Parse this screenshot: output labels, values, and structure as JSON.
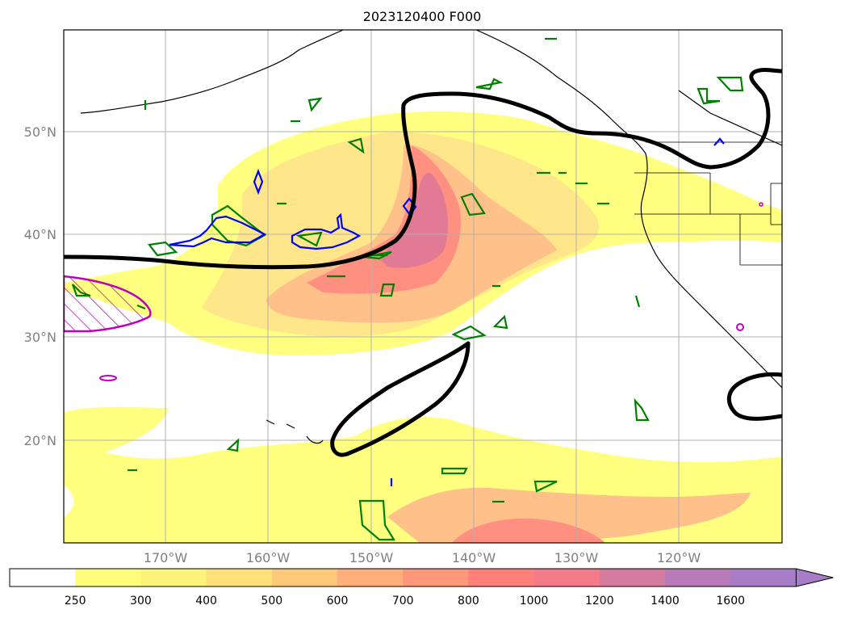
{
  "title": "2023120400 F000",
  "map": {
    "lat_labels": [
      "50°N",
      "40°N",
      "30°N",
      "20°N"
    ],
    "lon_labels": [
      "170°W",
      "160°W",
      "150°W",
      "140°W",
      "130°W",
      "120°W"
    ],
    "gridlines": true
  },
  "colorbar": {
    "ticks": [
      "250",
      "300",
      "400",
      "500",
      "600",
      "700",
      "800",
      "1000",
      "1200",
      "1400",
      "1600"
    ],
    "colors": [
      "#ffffff",
      "#fffd7a",
      "#fff27a",
      "#ffe07a",
      "#ffc97a",
      "#ffb07a",
      "#ff977a",
      "#ff7f7a",
      "#f37b8a",
      "#d47b9f",
      "#b87ab8",
      "#a77dc8"
    ],
    "extend": "max"
  },
  "colors": {
    "jet_contour": "#000000",
    "green_contour": "#008000",
    "blue_contour": "#0000ff",
    "magenta_hatch": "#c000c0"
  }
}
